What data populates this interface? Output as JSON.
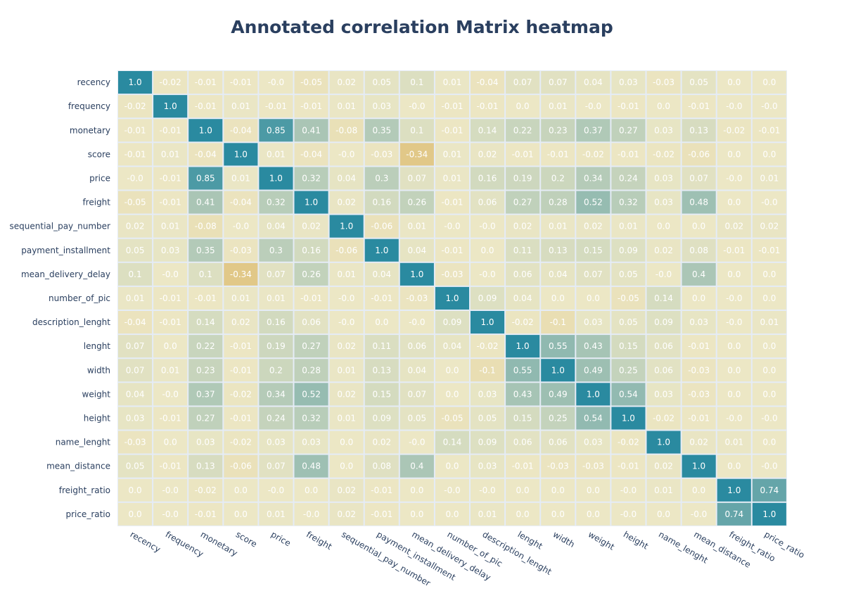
{
  "chart_data": {
    "type": "heatmap",
    "title": "Annotated correlation Matrix heatmap",
    "labels": [
      "recency",
      "frequency",
      "monetary",
      "score",
      "price",
      "freight",
      "sequential_pay_number",
      "payment_installment",
      "mean_delivery_delay",
      "number_of_pic",
      "description_lenght",
      "lenght",
      "width",
      "weight",
      "height",
      "name_lenght",
      "mean_distance",
      "freight_ratio",
      "price_ratio"
    ],
    "values": [
      [
        1.0,
        -0.02,
        -0.01,
        -0.01,
        -0.0,
        -0.05,
        0.02,
        0.05,
        0.1,
        0.01,
        -0.04,
        0.07,
        0.07,
        0.04,
        0.03,
        -0.03,
        0.05,
        0.0,
        0.0
      ],
      [
        -0.02,
        1.0,
        -0.01,
        0.01,
        -0.01,
        -0.01,
        0.01,
        0.03,
        -0.0,
        -0.01,
        -0.01,
        0.0,
        0.01,
        -0.0,
        -0.01,
        0.0,
        -0.01,
        -0.0,
        -0.0
      ],
      [
        -0.01,
        -0.01,
        1.0,
        -0.04,
        0.85,
        0.41,
        -0.08,
        0.35,
        0.1,
        -0.01,
        0.14,
        0.22,
        0.23,
        0.37,
        0.27,
        0.03,
        0.13,
        -0.02,
        -0.01
      ],
      [
        -0.01,
        0.01,
        -0.04,
        1.0,
        0.01,
        -0.04,
        -0.0,
        -0.03,
        -0.34,
        0.01,
        0.02,
        -0.01,
        -0.01,
        -0.02,
        -0.01,
        -0.02,
        -0.06,
        0.0,
        0.0
      ],
      [
        -0.0,
        -0.01,
        0.85,
        0.01,
        1.0,
        0.32,
        0.04,
        0.3,
        0.07,
        0.01,
        0.16,
        0.19,
        0.2,
        0.34,
        0.24,
        0.03,
        0.07,
        -0.0,
        0.01
      ],
      [
        -0.05,
        -0.01,
        0.41,
        -0.04,
        0.32,
        1.0,
        0.02,
        0.16,
        0.26,
        -0.01,
        0.06,
        0.27,
        0.28,
        0.52,
        0.32,
        0.03,
        0.48,
        0.0,
        -0.0
      ],
      [
        0.02,
        0.01,
        -0.08,
        -0.0,
        0.04,
        0.02,
        1.0,
        -0.06,
        0.01,
        -0.0,
        -0.0,
        0.02,
        0.01,
        0.02,
        0.01,
        0.0,
        0.0,
        0.02,
        0.02
      ],
      [
        0.05,
        0.03,
        0.35,
        -0.03,
        0.3,
        0.16,
        -0.06,
        1.0,
        0.04,
        -0.01,
        0.0,
        0.11,
        0.13,
        0.15,
        0.09,
        0.02,
        0.08,
        -0.01,
        -0.01
      ],
      [
        0.1,
        -0.0,
        0.1,
        -0.34,
        0.07,
        0.26,
        0.01,
        0.04,
        1.0,
        -0.03,
        -0.0,
        0.06,
        0.04,
        0.07,
        0.05,
        -0.0,
        0.4,
        0.0,
        0.0
      ],
      [
        0.01,
        -0.01,
        -0.01,
        0.01,
        0.01,
        -0.01,
        -0.0,
        -0.01,
        -0.03,
        1.0,
        0.09,
        0.04,
        0.0,
        0.0,
        -0.05,
        0.14,
        0.0,
        -0.0,
        0.0
      ],
      [
        -0.04,
        -0.01,
        0.14,
        0.02,
        0.16,
        0.06,
        -0.0,
        0.0,
        -0.0,
        0.09,
        1.0,
        -0.02,
        -0.1,
        0.03,
        0.05,
        0.09,
        0.03,
        -0.0,
        0.01
      ],
      [
        0.07,
        0.0,
        0.22,
        -0.01,
        0.19,
        0.27,
        0.02,
        0.11,
        0.06,
        0.04,
        -0.02,
        1.0,
        0.55,
        0.43,
        0.15,
        0.06,
        -0.01,
        0.0,
        0.0
      ],
      [
        0.07,
        0.01,
        0.23,
        -0.01,
        0.2,
        0.28,
        0.01,
        0.13,
        0.04,
        0.0,
        -0.1,
        0.55,
        1.0,
        0.49,
        0.25,
        0.06,
        -0.03,
        0.0,
        0.0
      ],
      [
        0.04,
        -0.0,
        0.37,
        -0.02,
        0.34,
        0.52,
        0.02,
        0.15,
        0.07,
        0.0,
        0.03,
        0.43,
        0.49,
        1.0,
        0.54,
        0.03,
        -0.03,
        0.0,
        0.0
      ],
      [
        0.03,
        -0.01,
        0.27,
        -0.01,
        0.24,
        0.32,
        0.01,
        0.09,
        0.05,
        -0.05,
        0.05,
        0.15,
        0.25,
        0.54,
        1.0,
        -0.02,
        -0.01,
        -0.0,
        -0.0
      ],
      [
        -0.03,
        0.0,
        0.03,
        -0.02,
        0.03,
        0.03,
        0.0,
        0.02,
        -0.0,
        0.14,
        0.09,
        0.06,
        0.06,
        0.03,
        -0.02,
        1.0,
        0.02,
        0.01,
        0.0
      ],
      [
        0.05,
        -0.01,
        0.13,
        -0.06,
        0.07,
        0.48,
        0.0,
        0.08,
        0.4,
        0.0,
        0.03,
        -0.01,
        -0.03,
        -0.03,
        -0.01,
        0.02,
        1.0,
        0.0,
        -0.0
      ],
      [
        0.0,
        -0.0,
        -0.02,
        0.0,
        -0.0,
        0.0,
        0.02,
        -0.01,
        0.0,
        -0.0,
        -0.0,
        0.0,
        0.0,
        0.0,
        -0.0,
        0.01,
        0.0,
        1.0,
        0.74
      ],
      [
        0.0,
        -0.0,
        -0.01,
        0.0,
        0.01,
        -0.0,
        0.02,
        -0.01,
        0.0,
        0.0,
        0.01,
        0.0,
        0.0,
        0.0,
        -0.0,
        0.0,
        -0.0,
        0.74,
        1.0
      ]
    ],
    "zrange": [
      -1,
      1
    ],
    "colorscale": [
      "#a6611a",
      "#dfc27d",
      "#f5f5dc",
      "#80cdc1",
      "#2a8aa0"
    ],
    "grid": false,
    "legend": "none"
  }
}
